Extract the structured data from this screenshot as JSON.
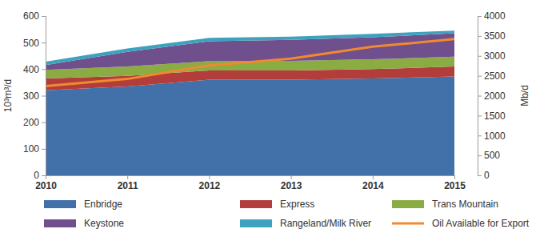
{
  "chart_data": {
    "type": "area",
    "stacked": true,
    "y_label": "10³m³/d",
    "y2_label": "Mb/d",
    "categories": [
      "2010",
      "2011",
      "2012",
      "2013",
      "2014",
      "2015"
    ],
    "ylim": [
      0,
      600
    ],
    "yticks": [
      0,
      100,
      200,
      300,
      400,
      500,
      600
    ],
    "y2lim": [
      0,
      4000
    ],
    "y2ticks": [
      0,
      500,
      1000,
      1500,
      2000,
      2500,
      3000,
      3500,
      4000
    ],
    "legend": "bottom",
    "series": [
      {
        "name": "Enbridge",
        "type": "area",
        "color": "#4270a8",
        "values": [
          320,
          335,
          360,
          360,
          365,
          372
        ]
      },
      {
        "name": "Express",
        "type": "area",
        "color": "#b33d3b",
        "values": [
          45,
          40,
          35,
          35,
          35,
          38
        ]
      },
      {
        "name": "Trans Mountain",
        "type": "area",
        "color": "#8bab43",
        "values": [
          32,
          35,
          35,
          36,
          37,
          37
        ]
      },
      {
        "name": "Keystone",
        "type": "area",
        "color": "#6f4f8c",
        "values": [
          18,
          55,
          75,
          79,
          83,
          88
        ]
      },
      {
        "name": "Rangeland/Milk River",
        "type": "area",
        "color": "#3ea2be",
        "values": [
          13,
          13,
          13,
          12,
          13,
          10
        ]
      },
      {
        "name": "Oil Available for Export",
        "type": "line",
        "axis": "y2",
        "color": "#f08a30",
        "values": [
          2240,
          2420,
          2760,
          2930,
          3230,
          3420
        ]
      }
    ]
  }
}
